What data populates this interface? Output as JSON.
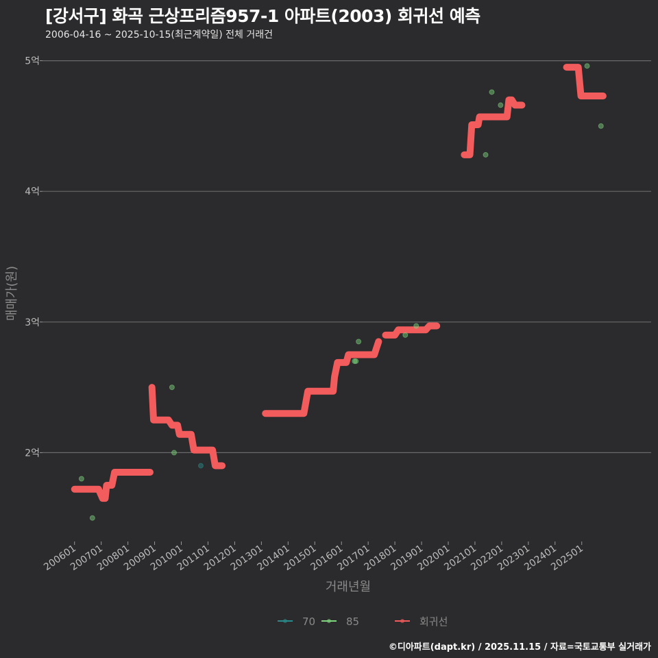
{
  "title": "[강서구] 화곡 근상프리즘957-1 아파트(2003) 회귀선 예측",
  "subtitle": "2006-04-16 ~ 2025-10-15(최근계약일) 전체 거래건",
  "credit": "©디아파트(dapt.kr) / 2025.11.15 / 자료=국토교통부 실거래가",
  "chart_data": {
    "type": "scatter",
    "xlabel": "거래년월",
    "ylabel": "매매가(원)",
    "xlim": [
      2004.8,
      2027.6
    ],
    "ylim": [
      1.32,
      5.15
    ],
    "grid": true,
    "legend_position": "bottom",
    "y_ticks": [
      {
        "value": 2,
        "label": "2억"
      },
      {
        "value": 3,
        "label": "3억"
      },
      {
        "value": 4,
        "label": "4억"
      },
      {
        "value": 5,
        "label": "5억"
      }
    ],
    "x_ticks": [
      {
        "value": 2006,
        "label": "200601"
      },
      {
        "value": 2007,
        "label": "200701"
      },
      {
        "value": 2008,
        "label": "200801"
      },
      {
        "value": 2009,
        "label": "200901"
      },
      {
        "value": 2010,
        "label": "201001"
      },
      {
        "value": 2011,
        "label": "201101"
      },
      {
        "value": 2012,
        "label": "201201"
      },
      {
        "value": 2013,
        "label": "201301"
      },
      {
        "value": 2014,
        "label": "201401"
      },
      {
        "value": 2015,
        "label": "201501"
      },
      {
        "value": 2016,
        "label": "201601"
      },
      {
        "value": 2017,
        "label": "201701"
      },
      {
        "value": 2018,
        "label": "201801"
      },
      {
        "value": 2019,
        "label": "201901"
      },
      {
        "value": 2020,
        "label": "202001"
      },
      {
        "value": 2021,
        "label": "202101"
      },
      {
        "value": 2022,
        "label": "202201"
      },
      {
        "value": 2023,
        "label": "202301"
      },
      {
        "value": 2024,
        "label": "202401"
      },
      {
        "value": 2025,
        "label": "202501"
      }
    ],
    "series": [
      {
        "name": "70",
        "color": "#2a8c8c",
        "kind": "points",
        "points": [
          [
            2010.73,
            1.9
          ]
        ]
      },
      {
        "name": "85",
        "color": "#7fd67f",
        "kind": "points",
        "points": [
          [
            2006.26,
            1.8
          ],
          [
            2006.67,
            1.5
          ],
          [
            2009.65,
            2.5
          ],
          [
            2009.73,
            2.0
          ],
          [
            2016.49,
            2.7
          ],
          [
            2016.54,
            2.7
          ],
          [
            2016.64,
            2.85
          ],
          [
            2018.39,
            2.9
          ],
          [
            2018.8,
            2.97
          ],
          [
            2021.4,
            4.28
          ],
          [
            2021.63,
            4.76
          ],
          [
            2021.96,
            4.66
          ],
          [
            2025.2,
            4.96
          ],
          [
            2025.72,
            4.5
          ]
        ]
      },
      {
        "name": "회귀선",
        "color": "#f25c5c",
        "kind": "line",
        "segments": [
          [
            [
              2006.0,
              1.72
            ],
            [
              2006.9,
              1.72
            ],
            [
              2007.05,
              1.65
            ],
            [
              2007.15,
              1.65
            ],
            [
              2007.2,
              1.75
            ],
            [
              2007.4,
              1.75
            ],
            [
              2007.5,
              1.85
            ],
            [
              2008.83,
              1.85
            ]
          ],
          [
            [
              2008.9,
              2.5
            ],
            [
              2008.96,
              2.25
            ],
            [
              2009.52,
              2.25
            ],
            [
              2009.65,
              2.21
            ],
            [
              2009.86,
              2.21
            ],
            [
              2009.93,
              2.14
            ],
            [
              2010.37,
              2.14
            ],
            [
              2010.47,
              2.02
            ],
            [
              2011.17,
              2.02
            ],
            [
              2011.27,
              1.9
            ],
            [
              2011.53,
              1.9
            ]
          ],
          [
            [
              2013.15,
              2.3
            ],
            [
              2014.59,
              2.3
            ],
            [
              2014.74,
              2.47
            ],
            [
              2015.69,
              2.47
            ],
            [
              2015.74,
              2.58
            ],
            [
              2015.85,
              2.69
            ],
            [
              2016.18,
              2.69
            ],
            [
              2016.26,
              2.75
            ],
            [
              2017.23,
              2.75
            ],
            [
              2017.39,
              2.85
            ]
          ],
          [
            [
              2017.65,
              2.9
            ],
            [
              2018.0,
              2.9
            ],
            [
              2018.13,
              2.94
            ],
            [
              2019.16,
              2.94
            ],
            [
              2019.29,
              2.97
            ],
            [
              2019.57,
              2.97
            ]
          ],
          [
            [
              2020.6,
              4.28
            ],
            [
              2020.81,
              4.28
            ],
            [
              2020.88,
              4.51
            ],
            [
              2021.12,
              4.51
            ],
            [
              2021.17,
              4.57
            ],
            [
              2022.2,
              4.57
            ],
            [
              2022.27,
              4.7
            ],
            [
              2022.38,
              4.7
            ],
            [
              2022.5,
              4.66
            ],
            [
              2022.76,
              4.66
            ]
          ],
          [
            [
              2024.43,
              4.95
            ],
            [
              2024.87,
              4.95
            ],
            [
              2024.97,
              4.73
            ],
            [
              2025.8,
              4.73
            ]
          ]
        ]
      }
    ]
  }
}
